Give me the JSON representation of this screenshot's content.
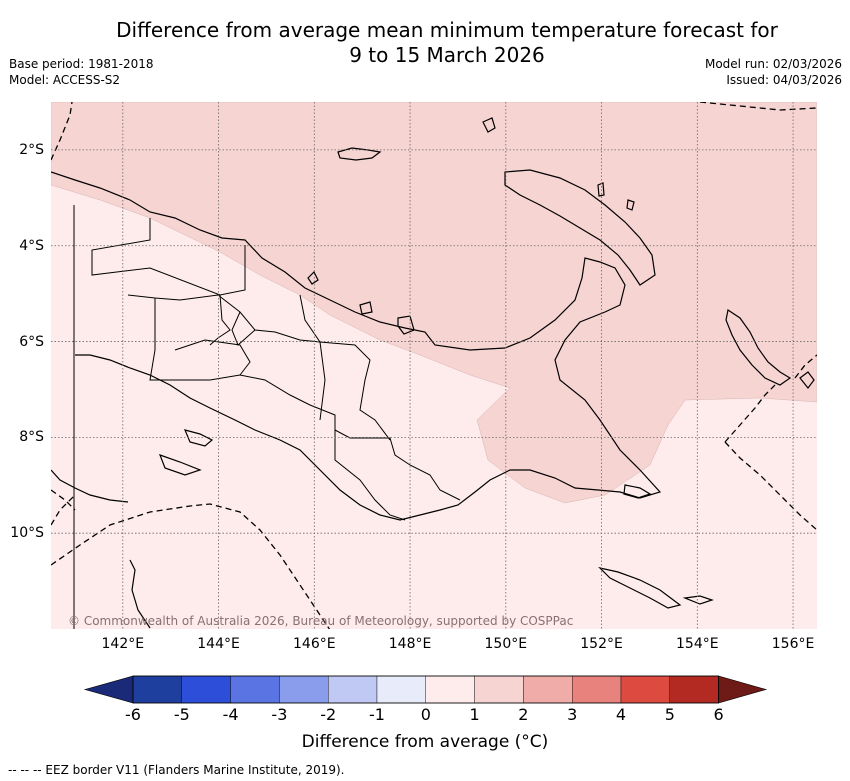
{
  "header": {
    "title_line1": "Difference from average mean minimum temperature forecast for",
    "title_line2": "9 to 15 March 2026",
    "base_period": "Base period: 1981-2018",
    "model": "Model: ACCESS-S2",
    "model_run": "Model run: 02/03/2026",
    "issued": "Issued: 04/03/2026"
  },
  "map": {
    "lon_range": [
      140.5,
      156.5
    ],
    "lat_range": [
      -12,
      -1
    ],
    "x_ticks": [
      "142°E",
      "144°E",
      "146°E",
      "148°E",
      "150°E",
      "152°E",
      "154°E",
      "156°E"
    ],
    "y_ticks": [
      "2°S",
      "4°S",
      "6°S",
      "8°S",
      "10°S"
    ],
    "gridlines": true,
    "copyright": "© Commonwealth of Australia 2026, Bureau of Meteorology, supported by COSPPac"
  },
  "colorbar": {
    "ticks": [
      "-6",
      "-5",
      "-4",
      "-3",
      "-2",
      "-1",
      "0",
      "1",
      "2",
      "3",
      "4",
      "5",
      "6"
    ],
    "colors": [
      "#1f3f9e",
      "#2c4ed8",
      "#5a74e4",
      "#8a9cec",
      "#c0c8f4",
      "#e8ecfa",
      "#fdeceb",
      "#f6d4d2",
      "#f0aca8",
      "#e8827c",
      "#dc4a40",
      "#b22a22"
    ],
    "low_extend_color": "#1b2a78",
    "high_extend_color": "#6e1a16",
    "label": "Difference from average (°C)"
  },
  "footnote": "--  --  -- EEZ border V11 (Flanders Marine Institute, 2019)."
}
